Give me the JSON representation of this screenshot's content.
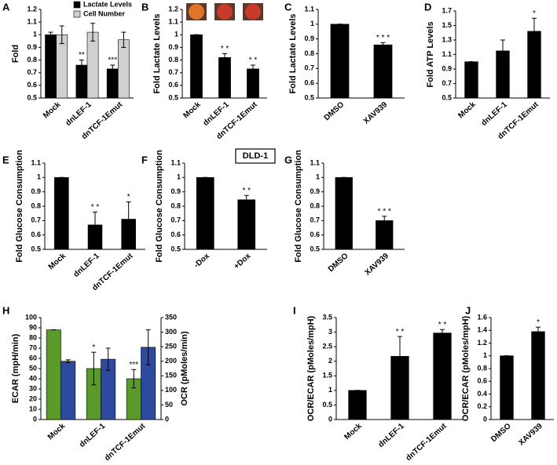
{
  "chart_data": [
    {
      "type": "bar",
      "panel_label": "A",
      "ylabel": "Fold",
      "categories": [
        "Mock",
        "dnLEF-1",
        "dnTCF-1Emut"
      ],
      "series": [
        {
          "name": "Lactate Levels",
          "color": "#000000",
          "values": [
            1.0,
            0.76,
            0.73
          ],
          "errors": [
            0.02,
            0.04,
            0.03
          ],
          "sig_labels": [
            null,
            "**",
            "***"
          ]
        },
        {
          "name": "Cell Number",
          "color": "#d0d0d0",
          "values": [
            1.0,
            1.02,
            0.96
          ],
          "errors": [
            0.07,
            0.07,
            0.06
          ],
          "sig_labels": [
            null,
            null,
            null
          ]
        }
      ],
      "ylim": [
        0.5,
        1.2
      ],
      "yticks": [
        0.5,
        0.6,
        0.7,
        0.8,
        0.9,
        1,
        1.1,
        1.2
      ]
    },
    {
      "type": "bar",
      "panel_label": "B",
      "ylabel": "Fold Lactate Levels",
      "categories": [
        "Mock",
        "dnLEF-1",
        "dnTCF-1Emut"
      ],
      "values": [
        1.0,
        0.82,
        0.73
      ],
      "errors": [
        0,
        0.03,
        0.03
      ],
      "sig_labels": [
        null,
        "* *",
        "* *"
      ],
      "color": "#000000",
      "ylim": [
        0.5,
        1.2
      ],
      "yticks": [
        0.5,
        0.6,
        0.7,
        0.8,
        0.9,
        1,
        1.1,
        1.2
      ]
    },
    {
      "type": "bar",
      "panel_label": "C",
      "ylabel": "Fold Lactate Levels",
      "categories": [
        "DMSO",
        "XAV939"
      ],
      "values": [
        1.0,
        0.86
      ],
      "errors": [
        0,
        0.015
      ],
      "sig_labels": [
        null,
        "* * *"
      ],
      "color": "#000000",
      "ylim": [
        0.5,
        1.1
      ],
      "yticks": [
        0.5,
        0.6,
        0.7,
        0.8,
        0.9,
        1,
        1.1
      ]
    },
    {
      "type": "bar",
      "panel_label": "D",
      "ylabel": "Fold ATP Levels",
      "categories": [
        "Mock",
        "dnLEF-1",
        "dnTCF-1Emut"
      ],
      "values": [
        1.0,
        1.15,
        1.42
      ],
      "errors": [
        0,
        0.15,
        0.18
      ],
      "sig_labels": [
        null,
        null,
        "*"
      ],
      "color": "#000000",
      "ylim": [
        0.5,
        1.7
      ],
      "yticks": [
        0.5,
        0.7,
        0.9,
        1.1,
        1.3,
        1.5,
        1.7
      ]
    },
    {
      "type": "bar",
      "panel_label": "E",
      "ylabel": "Fold Glucose Consumption",
      "categories": [
        "Mock",
        "dnLEF-1",
        "dnTCF-1Emut"
      ],
      "values": [
        1.0,
        0.67,
        0.71
      ],
      "errors": [
        0,
        0.09,
        0.12
      ],
      "sig_labels": [
        null,
        "* *",
        "*"
      ],
      "color": "#000000",
      "ylim": [
        0.5,
        1.1
      ],
      "yticks": [
        0.5,
        0.6,
        0.7,
        0.8,
        0.9,
        1,
        1.1
      ]
    },
    {
      "type": "bar",
      "panel_label": "F",
      "ylabel": "Fold Glucose Consumption",
      "inset_label": "DLD-1",
      "categories": [
        "-Dox",
        "+Dox"
      ],
      "values": [
        1.0,
        0.845
      ],
      "errors": [
        0,
        0.03
      ],
      "sig_labels": [
        null,
        "* *"
      ],
      "color": "#000000",
      "ylim": [
        0.5,
        1.1
      ],
      "yticks": [
        0.5,
        0.6,
        0.7,
        0.8,
        0.9,
        1,
        1.1
      ]
    },
    {
      "type": "bar",
      "panel_label": "G",
      "ylabel": "Fold Glucose Consumption",
      "categories": [
        "DMSO",
        "XAV939"
      ],
      "values": [
        1.0,
        0.7
      ],
      "errors": [
        0,
        0.03
      ],
      "sig_labels": [
        null,
        "* * *"
      ],
      "color": "#000000",
      "ylim": [
        0.5,
        1.1
      ],
      "yticks": [
        0.5,
        0.6,
        0.7,
        0.8,
        0.9,
        1,
        1.1
      ]
    },
    {
      "type": "bar",
      "panel_label": "H",
      "ylabel": "ECAR (mpH/min)",
      "y2label": "OCR (pMoles/min)",
      "categories": [
        "Mock",
        "dnLEF-1",
        "dnTCF-1Emut"
      ],
      "series": [
        {
          "color": "#5a9a2a",
          "values": [
            88,
            50,
            40
          ],
          "errors": [
            0,
            16,
            9
          ],
          "sig_labels": [
            null,
            "*",
            "***"
          ]
        },
        {
          "color": "#2e4a9e",
          "values": [
            200,
            207,
            248
          ],
          "errors": [
            5,
            38,
            60
          ],
          "sig_labels": [
            null,
            null,
            null
          ],
          "axis": "y2"
        }
      ],
      "ylim": [
        0,
        100
      ],
      "yticks": [
        0,
        10,
        20,
        30,
        40,
        50,
        60,
        70,
        80,
        90,
        100
      ],
      "y2lim": [
        0,
        350
      ],
      "y2ticks": [
        0,
        50,
        100,
        150,
        200,
        250,
        300,
        350
      ]
    },
    {
      "type": "bar",
      "panel_label": "I",
      "ylabel": "OCR/ECAR (pMoles/mpH)",
      "categories": [
        "Mock",
        "dnLEF-1",
        "dnTCF-1Emut"
      ],
      "values": [
        1.0,
        2.17,
        2.97
      ],
      "errors": [
        0,
        0.68,
        0.12
      ],
      "sig_labels": [
        null,
        "* *",
        "* *"
      ],
      "color": "#000000",
      "ylim": [
        0,
        3.5
      ],
      "yticks": [
        0,
        0.5,
        1,
        1.5,
        2,
        2.5,
        3,
        3.5
      ]
    },
    {
      "type": "bar",
      "panel_label": "J",
      "ylabel": "OCR/ECAR (pMoles/mpH)",
      "categories": [
        "DMSO",
        "XAV939"
      ],
      "values": [
        1.0,
        1.38
      ],
      "errors": [
        0,
        0.07
      ],
      "sig_labels": [
        null,
        "*"
      ],
      "color": "#000000",
      "ylim": [
        0,
        1.6
      ],
      "yticks": [
        0,
        0.2,
        0.4,
        0.6,
        0.8,
        1,
        1.2,
        1.4,
        1.6
      ]
    }
  ]
}
